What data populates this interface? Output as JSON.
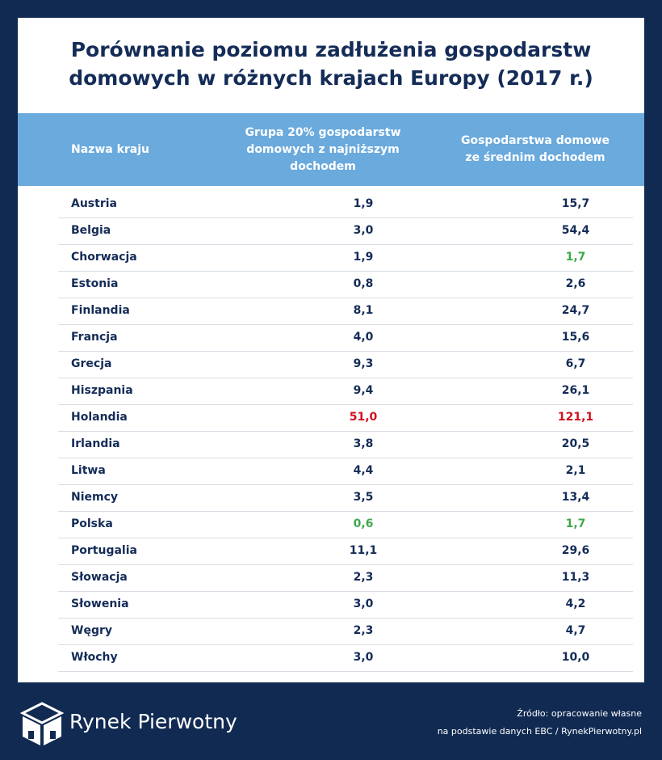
{
  "header": {
    "title": "Porównanie poziomu zadłużenia gospodarstw domowych w różnych krajach Europy (2017 r.)"
  },
  "table": {
    "columns": [
      "Nazwa kraju",
      "Grupa 20% gospodarstw domowych z najniższym dochodem",
      "Gospodarstwa domowe ze średnim dochodem"
    ],
    "rows": [
      [
        "Austria",
        "1,9",
        "15,7"
      ],
      [
        "Belgia",
        "3,0",
        "54,4"
      ],
      [
        "Chorwacja",
        "1,9",
        "1,7"
      ],
      [
        "Estonia",
        "0,8",
        "2,6"
      ],
      [
        "Finlandia",
        "8,1",
        "24,7"
      ],
      [
        "Francja",
        "4,0",
        "15,6"
      ],
      [
        "Grecja",
        "9,3",
        "6,7"
      ],
      [
        "Hiszpania",
        "9,4",
        "26,1"
      ],
      [
        "Holandia",
        "51,0",
        "121,1"
      ],
      [
        "Irlandia",
        "3,8",
        "20,5"
      ],
      [
        "Litwa",
        "4,4",
        "2,1"
      ],
      [
        "Niemcy",
        "3,5",
        "13,4"
      ],
      [
        "Polska",
        "0,6",
        "1,7"
      ],
      [
        "Portugalia",
        "11,1",
        "29,6"
      ],
      [
        "Słowacja",
        "2,3",
        "11,3"
      ],
      [
        "Słowenia",
        "3,0",
        "4,2"
      ],
      [
        "Węgry",
        "2,3",
        "4,7"
      ],
      [
        "Włochy",
        "3,0",
        "10,0"
      ]
    ],
    "highlights": [
      {
        "row": "Chorwacja",
        "column": 2,
        "color": "#3ea84b"
      },
      {
        "row": "Holandia",
        "column": 1,
        "color": "#d0101e"
      },
      {
        "row": "Holandia",
        "column": 2,
        "color": "#d0101e"
      },
      {
        "row": "Polska",
        "column": 1,
        "color": "#3ea84b"
      },
      {
        "row": "Polska",
        "column": 2,
        "color": "#3ea84b"
      }
    ]
  },
  "footer": {
    "brand": "Rynek Pierwotny",
    "source_line1": "Źródło: opracowanie własne",
    "source_line2": "na podstawie danych EBC / RynekPierwotny.pl"
  }
}
